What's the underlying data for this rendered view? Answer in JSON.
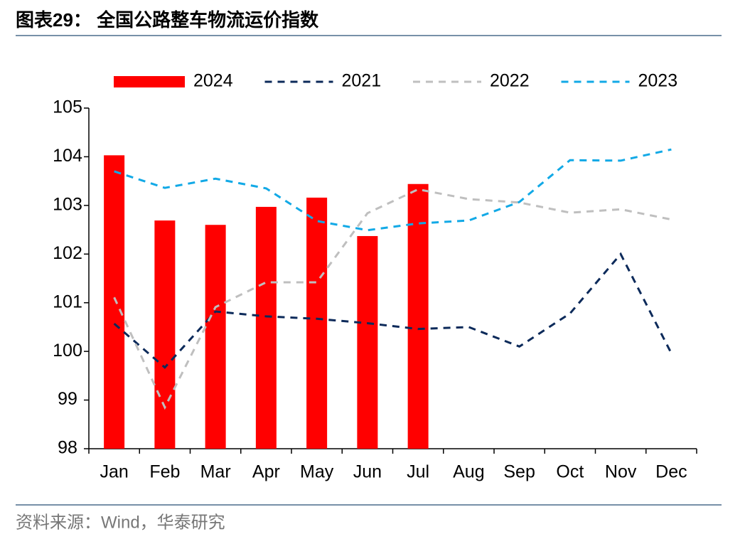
{
  "chart_data": {
    "type": "bar",
    "title": "图表29： 全国公路整车物流运价指数",
    "source": "资料来源：Wind，华泰研究",
    "categories": [
      "Jan",
      "Feb",
      "Mar",
      "Apr",
      "May",
      "Jun",
      "Jul",
      "Aug",
      "Sep",
      "Oct",
      "Nov",
      "Dec"
    ],
    "series": [
      {
        "name": "2024",
        "type": "bar",
        "color": "#ff0000",
        "values": [
          104.03,
          102.69,
          102.6,
          102.97,
          103.16,
          102.37,
          103.44,
          null,
          null,
          null,
          null,
          null
        ]
      },
      {
        "name": "2021",
        "type": "line",
        "dashed": true,
        "color": "#0c2a5a",
        "values": [
          100.57,
          99.67,
          100.82,
          100.72,
          100.67,
          100.58,
          100.46,
          100.5,
          100.1,
          100.78,
          102.0,
          99.96
        ]
      },
      {
        "name": "2022",
        "type": "line",
        "dashed": true,
        "color": "#bfbfbf",
        "values": [
          101.11,
          98.85,
          100.91,
          101.42,
          101.42,
          102.84,
          103.33,
          103.13,
          103.06,
          102.85,
          102.92,
          102.71
        ]
      },
      {
        "name": "2023",
        "type": "line",
        "dashed": true,
        "color": "#12a9e6",
        "values": [
          103.7,
          103.36,
          103.55,
          103.35,
          102.68,
          102.49,
          102.63,
          102.69,
          103.07,
          103.93,
          103.92,
          104.15
        ]
      }
    ],
    "ylim": [
      98,
      105
    ],
    "yticks": [
      98,
      99,
      100,
      101,
      102,
      103,
      104,
      105
    ],
    "grid": false,
    "legend": "top"
  }
}
